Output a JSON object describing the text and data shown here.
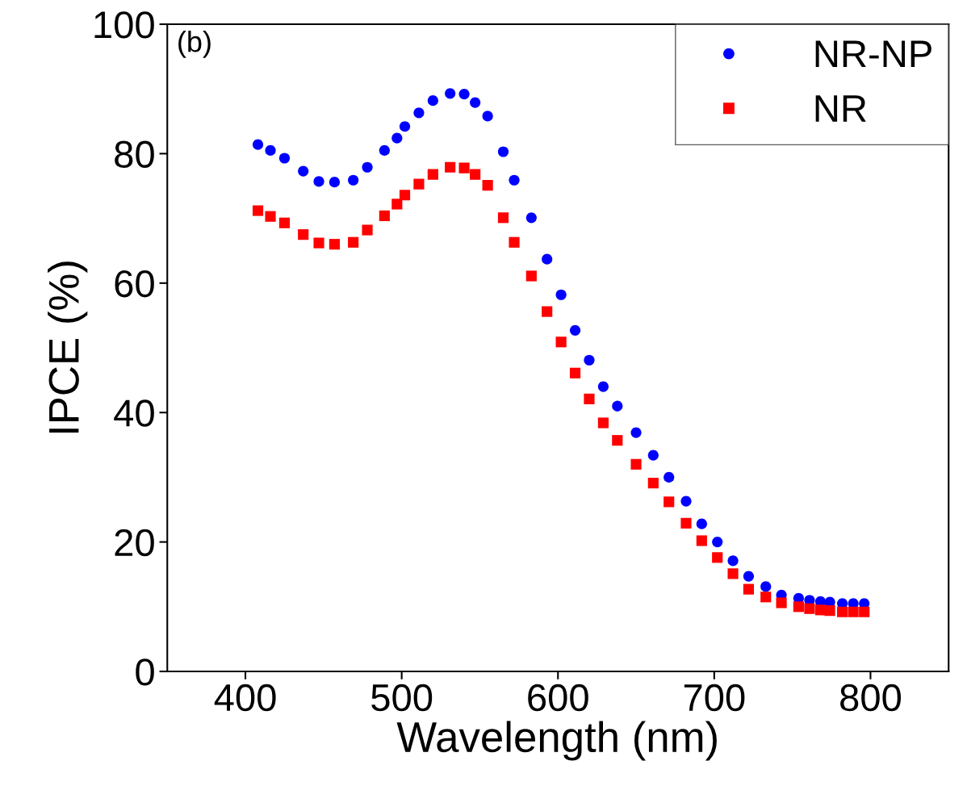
{
  "chart_data": {
    "type": "scatter",
    "xlabel": "Wavelength (nm)",
    "ylabel": "IPCE (%)",
    "annotations": [
      "(b)"
    ],
    "xlim": [
      350,
      850
    ],
    "xticks": [
      400,
      500,
      600,
      700,
      800
    ],
    "ylim": [
      0,
      100
    ],
    "yticks": [
      0,
      20,
      40,
      60,
      80,
      100
    ],
    "x": [
      408,
      416,
      425,
      437,
      447,
      457,
      469,
      478,
      489,
      497,
      502,
      511,
      520,
      531,
      540,
      547,
      555,
      565,
      572,
      583,
      593,
      602,
      611,
      620,
      629,
      638,
      650,
      661,
      671,
      682,
      692,
      702,
      712,
      722,
      733,
      743,
      754,
      761,
      768,
      774,
      782,
      789,
      796
    ],
    "legend": "top right",
    "grid": false,
    "series": [
      {
        "name": "NR-NP",
        "color": "#0000ff",
        "marker": "circle",
        "values": [
          81.4,
          80.5,
          79.3,
          77.3,
          75.7,
          75.6,
          75.9,
          77.9,
          80.5,
          82.4,
          84.2,
          86.3,
          88.2,
          89.3,
          89.2,
          87.9,
          85.8,
          80.3,
          75.9,
          70.1,
          63.7,
          58.2,
          52.7,
          48.1,
          44.0,
          41.0,
          36.9,
          33.4,
          30.0,
          26.3,
          22.8,
          20.0,
          17.1,
          14.7,
          13.1,
          11.8,
          11.3,
          11.0,
          10.8,
          10.7,
          10.5,
          10.5,
          10.5
        ]
      },
      {
        "name": "NR",
        "color": "#ff0000",
        "marker": "square",
        "values": [
          71.2,
          70.3,
          69.3,
          67.5,
          66.2,
          66.0,
          66.3,
          68.2,
          70.4,
          72.2,
          73.6,
          75.3,
          76.8,
          77.9,
          77.8,
          76.8,
          75.1,
          70.1,
          66.3,
          61.1,
          55.6,
          50.9,
          46.1,
          42.1,
          38.4,
          35.7,
          32.0,
          29.1,
          26.2,
          22.9,
          20.2,
          17.6,
          15.1,
          12.7,
          11.5,
          10.6,
          10.0,
          9.7,
          9.5,
          9.4,
          9.2,
          9.2,
          9.2
        ]
      }
    ]
  }
}
